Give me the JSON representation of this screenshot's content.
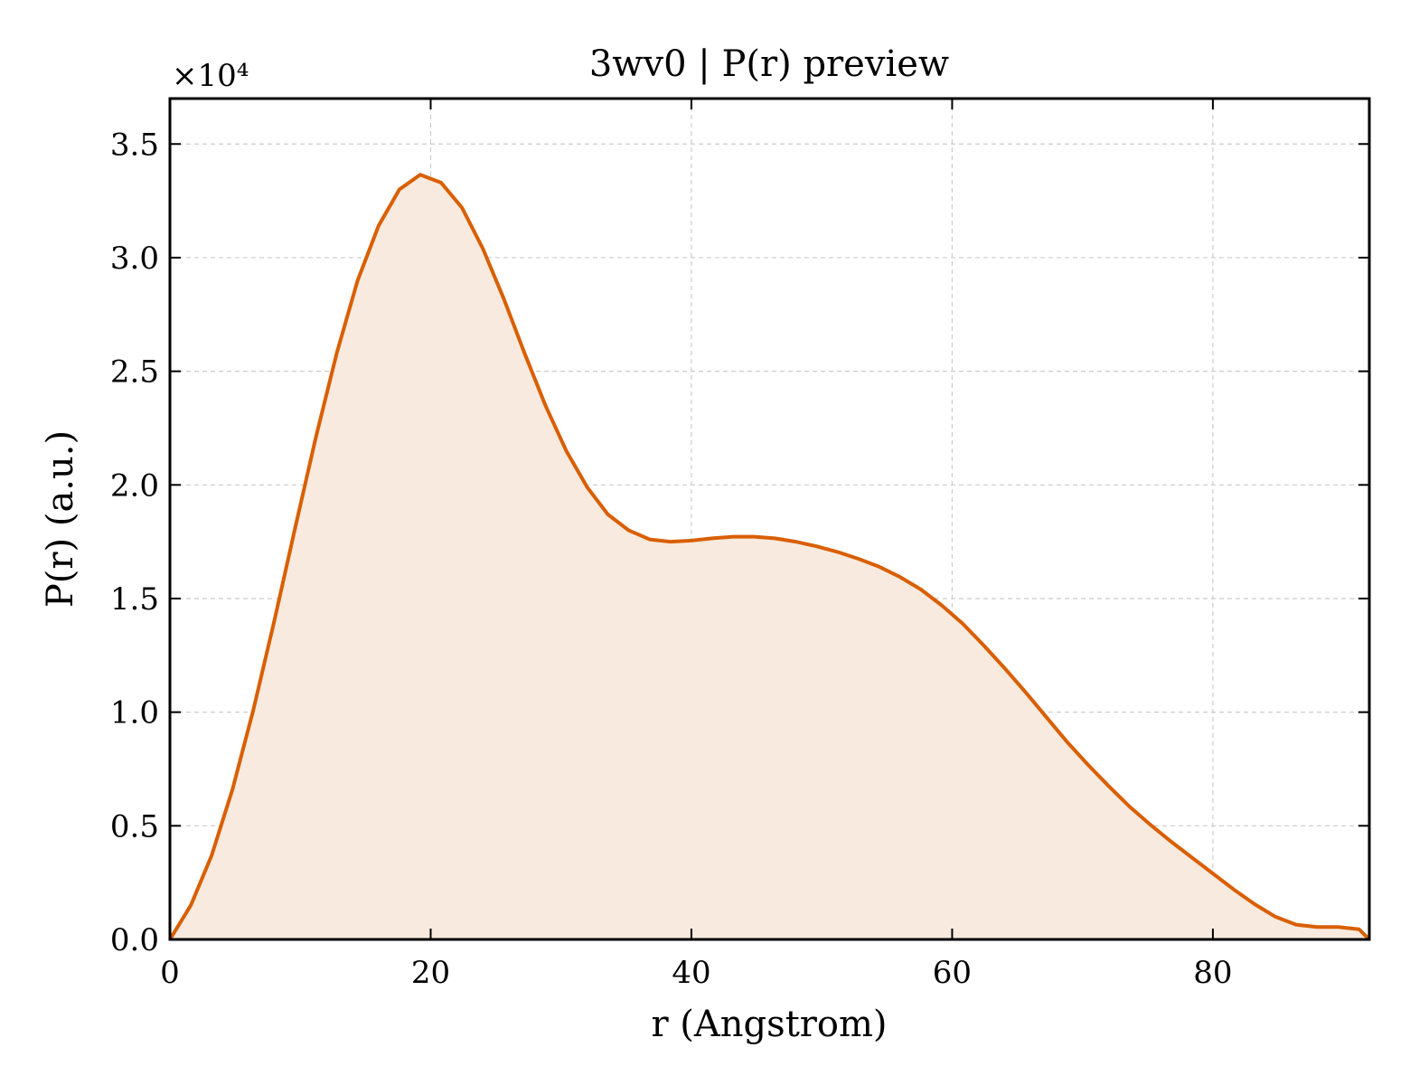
{
  "chart_data": {
    "type": "area",
    "title": "3wv0 | P(r) preview",
    "xlabel": "r (Angstrom)",
    "ylabel": "P(r) (a.u.)",
    "y_multiplier_label": "×10⁴",
    "xlim": [
      0,
      92
    ],
    "ylim": [
      0,
      3.7
    ],
    "xticks": [
      0,
      20,
      40,
      60,
      80
    ],
    "xtick_labels": [
      "0",
      "20",
      "40",
      "60",
      "80"
    ],
    "yticks": [
      0.0,
      0.5,
      1.0,
      1.5,
      2.0,
      2.5,
      3.0,
      3.5
    ],
    "ytick_labels": [
      "0.0",
      "0.5",
      "1.0",
      "1.5",
      "2.0",
      "2.5",
      "3.0",
      "3.5"
    ],
    "grid": true,
    "legend": false,
    "line_color": "#d95f02",
    "fill_color": "#f9eadf",
    "series": [
      {
        "x": [
          0,
          1.6,
          3.2,
          4.8,
          6.4,
          8.0,
          9.6,
          11.2,
          12.8,
          14.4,
          16.0,
          17.6,
          19.2,
          20.8,
          22.4,
          24.0,
          25.6,
          27.2,
          28.8,
          30.4,
          32.0,
          33.6,
          35.2,
          36.8,
          38.4,
          40.0,
          41.6,
          43.2,
          44.8,
          46.4,
          48.0,
          49.6,
          51.2,
          52.8,
          54.4,
          56.0,
          57.6,
          59.2,
          60.8,
          62.4,
          64.0,
          65.6,
          67.2,
          68.8,
          70.4,
          72.0,
          73.6,
          75.2,
          76.8,
          78.4,
          80.0,
          81.6,
          83.2,
          84.8,
          86.4,
          88.0,
          89.6,
          91.2,
          92.0
        ],
        "y": [
          0.0,
          0.15,
          0.37,
          0.66,
          1.01,
          1.4,
          1.81,
          2.21,
          2.58,
          2.9,
          3.14,
          3.3,
          3.365,
          3.33,
          3.22,
          3.04,
          2.82,
          2.58,
          2.35,
          2.15,
          1.99,
          1.87,
          1.8,
          1.76,
          1.75,
          1.755,
          1.765,
          1.772,
          1.772,
          1.765,
          1.75,
          1.73,
          1.705,
          1.675,
          1.64,
          1.595,
          1.54,
          1.47,
          1.39,
          1.295,
          1.195,
          1.09,
          0.98,
          0.87,
          0.77,
          0.675,
          0.585,
          0.505,
          0.43,
          0.36,
          0.29,
          0.22,
          0.155,
          0.1,
          0.065,
          0.055,
          0.055,
          0.045,
          0.0
        ]
      }
    ]
  }
}
